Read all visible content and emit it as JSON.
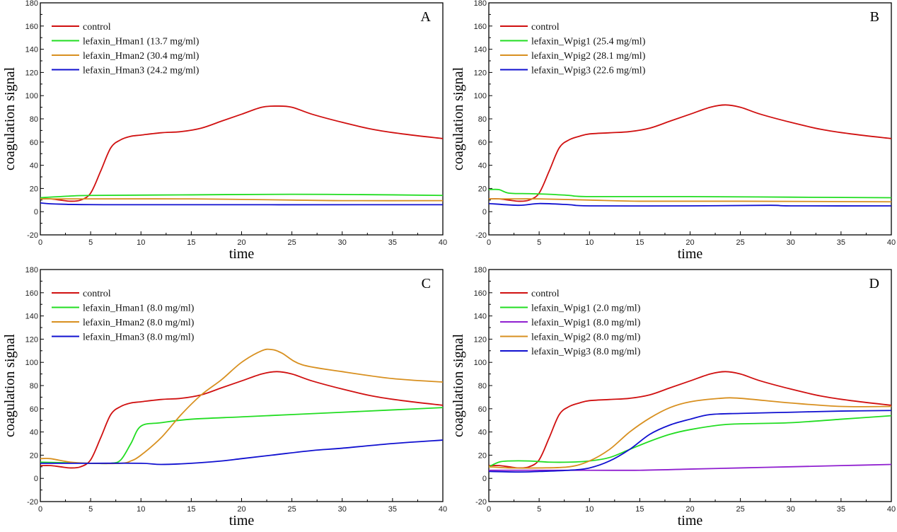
{
  "chart_data": [
    {
      "type": "line",
      "panel_label": "A",
      "xlabel": "time",
      "ylabel": "coagulation signal",
      "xlim": [
        0,
        40
      ],
      "ylim": [
        -20,
        180
      ],
      "xticks": [
        0,
        5,
        10,
        15,
        20,
        25,
        30,
        35,
        40
      ],
      "yticks": [
        -20,
        0,
        20,
        40,
        60,
        80,
        100,
        120,
        140,
        160,
        180
      ],
      "grid": false,
      "legend_position": "top-left",
      "series": [
        {
          "name": "control",
          "color": "#d01010",
          "x": [
            0,
            1,
            2,
            3,
            4,
            5,
            6,
            7,
            8,
            9,
            10,
            12,
            14,
            16,
            18,
            20,
            22,
            23.5,
            25,
            27,
            30,
            33,
            36,
            40
          ],
          "y": [
            11,
            11,
            10,
            9,
            10,
            16,
            35,
            55,
            62,
            65,
            66,
            68,
            69,
            72,
            78,
            84,
            90,
            91,
            90,
            84,
            77,
            71,
            67,
            63
          ]
        },
        {
          "name": "lefaxin_Hman1 (13.7 mg/ml)",
          "color": "#22dd22",
          "x": [
            0,
            2,
            5,
            15,
            25,
            35,
            40
          ],
          "y": [
            12,
            13,
            14,
            14.5,
            15,
            14.5,
            14
          ]
        },
        {
          "name": "lefaxin_Hman2 (30.4 mg/ml)",
          "color": "#d89020",
          "x": [
            0,
            5,
            15,
            25,
            30,
            40
          ],
          "y": [
            11,
            11,
            11,
            10,
            9.5,
            9.5
          ]
        },
        {
          "name": "lefaxin_Hman3 (24.2 mg/ml)",
          "color": "#1010d0",
          "x": [
            0,
            2,
            8,
            40
          ],
          "y": [
            7.5,
            6.5,
            6,
            6
          ]
        }
      ]
    },
    {
      "type": "line",
      "panel_label": "B",
      "xlabel": "time",
      "ylabel": "coagulation signal",
      "xlim": [
        0,
        40
      ],
      "ylim": [
        -20,
        180
      ],
      "xticks": [
        0,
        5,
        10,
        15,
        20,
        25,
        30,
        35,
        40
      ],
      "yticks": [
        -20,
        0,
        20,
        40,
        60,
        80,
        100,
        120,
        140,
        160,
        180
      ],
      "grid": false,
      "legend_position": "top-left",
      "series": [
        {
          "name": "control",
          "color": "#d01010",
          "x": [
            0,
            1,
            2,
            3,
            4,
            5,
            6,
            7,
            8,
            9,
            10,
            12,
            14,
            16,
            18,
            20,
            22,
            23.5,
            25,
            27,
            30,
            33,
            36,
            40
          ],
          "y": [
            11,
            11,
            10,
            9,
            10,
            16,
            35,
            55,
            62,
            65,
            67,
            68,
            69,
            72,
            78,
            84,
            90,
            92,
            90,
            84,
            77,
            71,
            67,
            63
          ]
        },
        {
          "name": "lefaxin_Wpig1 (25.4 mg/ml)",
          "color": "#22dd22",
          "x": [
            0,
            1,
            2,
            4,
            6,
            8,
            10,
            20,
            30,
            40
          ],
          "y": [
            19,
            19,
            16,
            15.5,
            15,
            14,
            13,
            13,
            12.5,
            12
          ]
        },
        {
          "name": "lefaxin_Wpig2 (28.1 mg/ml)",
          "color": "#d89020",
          "x": [
            0,
            2,
            5,
            10,
            15,
            25,
            40
          ],
          "y": [
            11,
            11,
            11,
            10,
            9,
            9,
            8.5
          ]
        },
        {
          "name": "lefaxin_Wpig3 (22.6 mg/ml)",
          "color": "#1010d0",
          "x": [
            0,
            3,
            5,
            8,
            10,
            20,
            28,
            30,
            40
          ],
          "y": [
            7,
            5.5,
            7,
            6,
            5,
            5,
            5.5,
            5,
            5
          ]
        }
      ]
    },
    {
      "type": "line",
      "panel_label": "C",
      "xlabel": "time",
      "ylabel": "coagulation signal",
      "xlim": [
        0,
        40
      ],
      "ylim": [
        -20,
        180
      ],
      "xticks": [
        0,
        5,
        10,
        15,
        20,
        25,
        30,
        35,
        40
      ],
      "yticks": [
        -20,
        0,
        20,
        40,
        60,
        80,
        100,
        120,
        140,
        160,
        180
      ],
      "grid": false,
      "legend_position": "top-left",
      "series": [
        {
          "name": "control",
          "color": "#d01010",
          "x": [
            0,
            1,
            2,
            3,
            4,
            5,
            6,
            7,
            8,
            9,
            10,
            12,
            14,
            16,
            18,
            20,
            22,
            23.5,
            25,
            27,
            30,
            33,
            36,
            40
          ],
          "y": [
            11,
            11,
            10,
            9,
            10,
            16,
            35,
            55,
            62,
            65,
            66,
            68,
            69,
            72,
            78,
            84,
            90,
            92,
            90,
            84,
            77,
            71,
            67,
            63
          ]
        },
        {
          "name": "lefaxin_Hman1 (8.0 mg/ml)",
          "color": "#22dd22",
          "x": [
            0,
            5,
            7,
            8,
            9,
            10,
            12,
            15,
            20,
            25,
            30,
            35,
            40
          ],
          "y": [
            14,
            13,
            13,
            16,
            30,
            45,
            48,
            51,
            53,
            55,
            57,
            59,
            61
          ]
        },
        {
          "name": "lefaxin_Hman2 (8.0 mg/ml)",
          "color": "#d89020",
          "x": [
            0,
            1,
            3,
            5,
            8,
            9,
            10,
            12,
            14,
            16,
            18,
            20,
            22,
            23,
            24,
            26,
            30,
            35,
            40
          ],
          "y": [
            17,
            17,
            14,
            13,
            13,
            15,
            20,
            35,
            55,
            72,
            85,
            100,
            110,
            111,
            108,
            98,
            92,
            86,
            83
          ]
        },
        {
          "name": "lefaxin_Hman3 (8.0 mg/ml)",
          "color": "#1010d0",
          "x": [
            0,
            5,
            10,
            12,
            15,
            18,
            20,
            23,
            27,
            30,
            35,
            40
          ],
          "y": [
            13,
            13,
            13,
            12,
            13,
            15,
            17,
            20,
            24,
            26,
            30,
            33
          ]
        }
      ]
    },
    {
      "type": "line",
      "panel_label": "D",
      "xlabel": "time",
      "ylabel": "coagulation signal",
      "xlim": [
        0,
        40
      ],
      "ylim": [
        -20,
        180
      ],
      "xticks": [
        0,
        5,
        10,
        15,
        20,
        25,
        30,
        35,
        40
      ],
      "yticks": [
        -20,
        0,
        20,
        40,
        60,
        80,
        100,
        120,
        140,
        160,
        180
      ],
      "grid": false,
      "legend_position": "top-left",
      "series": [
        {
          "name": "control",
          "color": "#d01010",
          "x": [
            0,
            1,
            2,
            3,
            4,
            5,
            6,
            7,
            8,
            9,
            10,
            12,
            14,
            16,
            18,
            20,
            22,
            23.5,
            25,
            27,
            30,
            33,
            36,
            40
          ],
          "y": [
            11,
            11,
            10,
            9,
            10,
            16,
            35,
            55,
            62,
            65,
            67,
            68,
            69,
            72,
            78,
            84,
            90,
            92,
            90,
            84,
            77,
            71,
            67,
            63
          ]
        },
        {
          "name": "lefaxin_Wpig1 (2.0 mg/ml)",
          "color": "#22dd22",
          "x": [
            0,
            1,
            2,
            4,
            6,
            8,
            10,
            12,
            14,
            16,
            18,
            20,
            23,
            25,
            30,
            35,
            40
          ],
          "y": [
            10,
            14,
            15,
            15,
            14,
            14,
            15,
            18,
            25,
            32,
            38,
            42,
            46,
            47,
            48,
            51,
            54
          ]
        },
        {
          "name": "lefaxin_Wpig1 (8.0 mg/ml)",
          "color": "#9020d0",
          "x": [
            0,
            10,
            15,
            20,
            25,
            30,
            35,
            40
          ],
          "y": [
            7,
            7,
            7,
            8,
            9,
            10,
            11,
            12
          ]
        },
        {
          "name": "lefaxin_Wpig2 (8.0 mg/ml)",
          "color": "#d89020",
          "x": [
            0,
            2,
            5,
            8,
            10,
            12,
            14,
            16,
            18,
            20,
            23,
            25,
            30,
            35,
            40
          ],
          "y": [
            10,
            9,
            9,
            10,
            15,
            25,
            40,
            52,
            61,
            66,
            69,
            69,
            65,
            62,
            62
          ]
        },
        {
          "name": "lefaxin_Wpig3 (8.0 mg/ml)",
          "color": "#1010d0",
          "x": [
            0,
            3,
            5,
            8,
            10,
            12,
            14,
            16,
            18,
            20,
            22,
            25,
            30,
            35,
            40
          ],
          "y": [
            6,
            5.5,
            6,
            7,
            9,
            15,
            25,
            38,
            46,
            51,
            55,
            56,
            57,
            58,
            58.5
          ]
        }
      ]
    }
  ]
}
